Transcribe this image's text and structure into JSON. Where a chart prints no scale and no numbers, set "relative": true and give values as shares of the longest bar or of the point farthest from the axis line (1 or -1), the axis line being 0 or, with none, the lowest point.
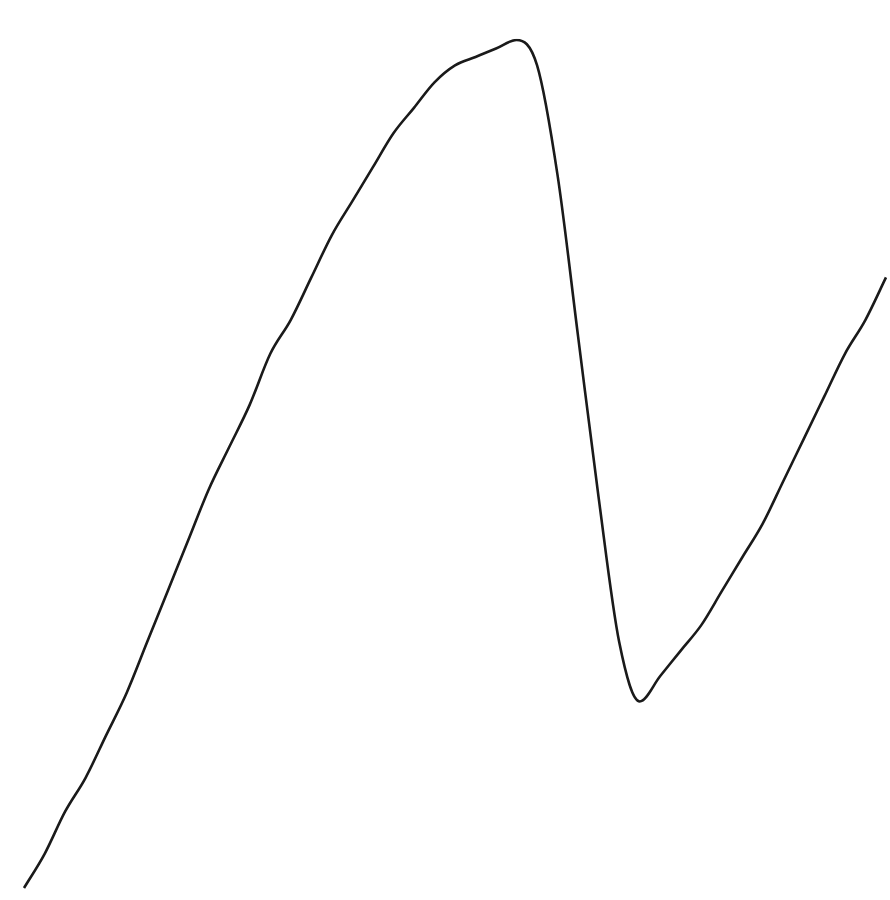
{
  "chart_data": {
    "type": "line",
    "relative": true,
    "categories": [
      null,
      null,
      null,
      null,
      null,
      null,
      null,
      null,
      null,
      null,
      null,
      null,
      null,
      null,
      null,
      null,
      null,
      null,
      null,
      null,
      null,
      null,
      null,
      null,
      null,
      null,
      null,
      null,
      null,
      null,
      null,
      null,
      null,
      null,
      null,
      null,
      null,
      null,
      null,
      null,
      null,
      null,
      null
    ],
    "series": [
      {
        "color": "#1a1a1a",
        "values": [
          0,
          0.04,
          0.09,
          0.13,
          0.18,
          0.23,
          0.29,
          0.35,
          0.41,
          0.47,
          0.52,
          0.57,
          0.63,
          0.67,
          0.72,
          0.77,
          0.81,
          0.85,
          0.89,
          0.92,
          0.95,
          0.97,
          0.98,
          0.99,
          1,
          0.97,
          0.84,
          0.65,
          0.46,
          0.29,
          0.22,
          0.25,
          0.28,
          0.31,
          0.35,
          0.39,
          0.43,
          0.48,
          0.53,
          0.58,
          0.63,
          0.67,
          0.72
        ]
      }
    ]
  }
}
